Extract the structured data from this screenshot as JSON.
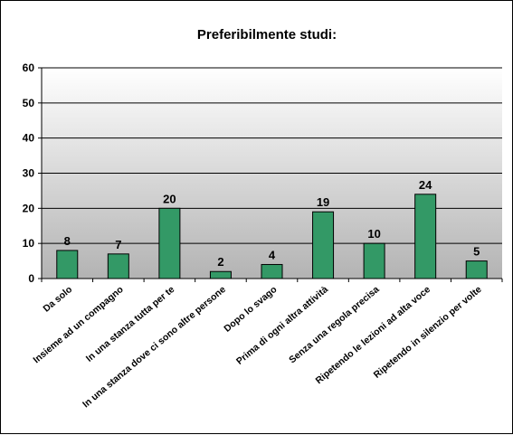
{
  "chart_data": {
    "type": "bar",
    "title": "Preferibilmente studi:",
    "xlabel": "",
    "ylabel": "",
    "ylim": [
      0,
      60
    ],
    "yticks": [
      0,
      10,
      20,
      30,
      40,
      50,
      60
    ],
    "grid": true,
    "legend": "none",
    "categories": [
      "Da solo",
      "Insieme ad un compagno",
      "In una stanza tutta per te",
      "In una stanza dove ci sono altre persone",
      "Dopo lo svago",
      "Prima di ogni altra attività",
      "Senza una regola precisa",
      "Ripetendo le lezioni ad alta voce",
      "Ripetendo in silenzio per volte"
    ],
    "values": [
      8,
      7,
      20,
      2,
      4,
      19,
      10,
      24,
      5
    ],
    "colors": {
      "bar": "#339966",
      "bar_border": "#000000",
      "plot_top": "#ffffff",
      "plot_bottom": "#b3b3b3",
      "grid": "#000000"
    }
  }
}
